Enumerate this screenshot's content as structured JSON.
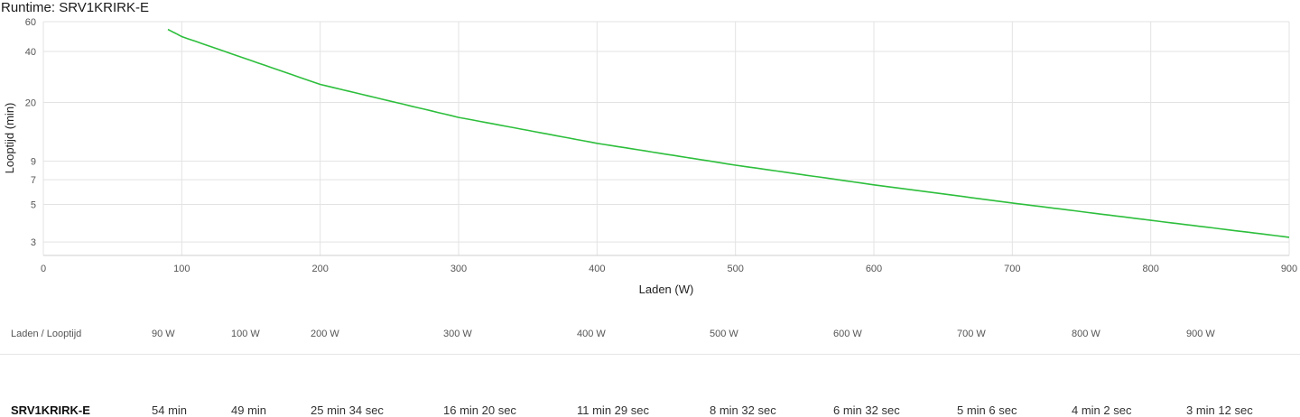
{
  "title": "Runtime: SRV1KRIRK-E",
  "chart_data": {
    "type": "line",
    "ylabel": "Looptijd (min)",
    "xlabel": "Laden (W)",
    "xlim": [
      0,
      900
    ],
    "ylim": [
      2.5,
      60
    ],
    "yscale": "log",
    "x_ticks": [
      0,
      100,
      200,
      300,
      400,
      500,
      600,
      700,
      800,
      900
    ],
    "y_ticks": [
      3,
      5,
      7,
      9,
      20,
      40,
      60
    ],
    "grid": true,
    "line_color": "#2dbe3c",
    "series": [
      {
        "x": [
          90,
          100,
          200,
          300,
          400,
          500,
          600,
          700,
          800,
          900
        ],
        "values": [
          54,
          49,
          25.57,
          16.33,
          11.48,
          8.53,
          6.53,
          5.1,
          4.03,
          3.2
        ]
      }
    ]
  },
  "table": {
    "header_label": "Laden / Looptijd",
    "loads": [
      "90 W",
      "100 W",
      "200 W",
      "300 W",
      "400 W",
      "500 W",
      "600 W",
      "700 W",
      "800 W",
      "900 W"
    ],
    "model": "SRV1KRIRK-E",
    "runtimes": [
      "54 min",
      "49 min",
      "25 min 34 sec",
      "16 min 20 sec",
      "11 min 29 sec",
      "8 min 32 sec",
      "6 min 32 sec",
      "5 min 6 sec",
      "4 min 2 sec",
      "3 min 12 sec"
    ]
  }
}
